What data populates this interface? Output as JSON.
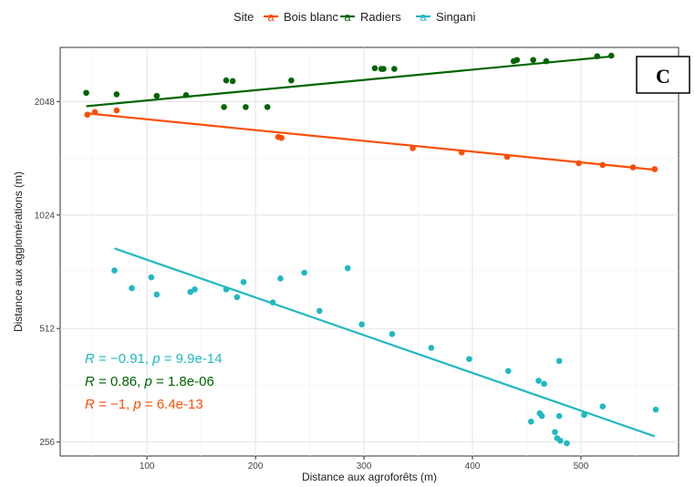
{
  "chart_data": {
    "type": "scatter",
    "xlabel": "Distance aux agroforêts (m)",
    "ylabel": "Distance aux agglomérations (m)",
    "y_scale": "log2",
    "xlim": [
      20,
      590
    ],
    "ylim": [
      235,
      2850
    ],
    "x_ticks": [
      100,
      200,
      300,
      400,
      500
    ],
    "y_ticks": [
      256,
      512,
      1024,
      2048
    ],
    "legend": {
      "title": "Site",
      "placement": "top",
      "entries": [
        "Bois blanc",
        "Radiers",
        "Singani"
      ]
    },
    "panel_label": "C",
    "series": [
      {
        "name": "Bois blanc",
        "color": "#FC4E07",
        "points": [
          [
            45,
            1890
          ],
          [
            52,
            1920
          ],
          [
            72,
            1940
          ],
          [
            221,
            1650
          ],
          [
            224,
            1640
          ],
          [
            345,
            1540
          ],
          [
            390,
            1500
          ],
          [
            432,
            1460
          ],
          [
            498,
            1405
          ],
          [
            520,
            1390
          ],
          [
            548,
            1370
          ],
          [
            568,
            1355
          ]
        ],
        "fit": [
          [
            45,
            1905
          ],
          [
            568,
            1350
          ]
        ],
        "stat": {
          "R": "−1",
          "p": "6.4e-13"
        }
      },
      {
        "name": "Radiers",
        "color": "#006400",
        "points": [
          [
            44,
            2160
          ],
          [
            72,
            2140
          ],
          [
            109,
            2120
          ],
          [
            136,
            2130
          ],
          [
            171,
            1980
          ],
          [
            173,
            2330
          ],
          [
            179,
            2320
          ],
          [
            191,
            1980
          ],
          [
            211,
            1980
          ],
          [
            233,
            2330
          ],
          [
            310,
            2510
          ],
          [
            316,
            2500
          ],
          [
            318,
            2500
          ],
          [
            328,
            2500
          ],
          [
            438,
            2620
          ],
          [
            441,
            2640
          ],
          [
            456,
            2640
          ],
          [
            468,
            2620
          ],
          [
            515,
            2700
          ],
          [
            528,
            2710
          ]
        ],
        "fit": [
          [
            44,
            1990
          ],
          [
            530,
            2700
          ]
        ],
        "stat": {
          "R": "0.86",
          "p": "1.8e-06"
        }
      },
      {
        "name": "Singani",
        "color": "#20B8C2",
        "points": [
          [
            70,
            730
          ],
          [
            86,
            655
          ],
          [
            104,
            700
          ],
          [
            109,
            630
          ],
          [
            140,
            640
          ],
          [
            144,
            650
          ],
          [
            173,
            650
          ],
          [
            183,
            620
          ],
          [
            189,
            680
          ],
          [
            216,
            600
          ],
          [
            223,
            695
          ],
          [
            245,
            720
          ],
          [
            259,
            570
          ],
          [
            285,
            740
          ],
          [
            298,
            525
          ],
          [
            326,
            495
          ],
          [
            362,
            455
          ],
          [
            397,
            425
          ],
          [
            433,
            395
          ],
          [
            454,
            290
          ],
          [
            461,
            372
          ],
          [
            462,
            305
          ],
          [
            464,
            300
          ],
          [
            466,
            365
          ],
          [
            476,
            272
          ],
          [
            478,
            262
          ],
          [
            480,
            420
          ],
          [
            480,
            300
          ],
          [
            481,
            258
          ],
          [
            487,
            254
          ],
          [
            503,
            302
          ],
          [
            520,
            318
          ],
          [
            569,
            312
          ]
        ],
        "fit": [
          [
            70,
            835
          ],
          [
            568,
            265
          ]
        ],
        "stat": {
          "R": "−0.91",
          "p": "9.9e-14"
        }
      }
    ],
    "stats_order": [
      "Singani",
      "Radiers",
      "Bois blanc"
    ]
  }
}
